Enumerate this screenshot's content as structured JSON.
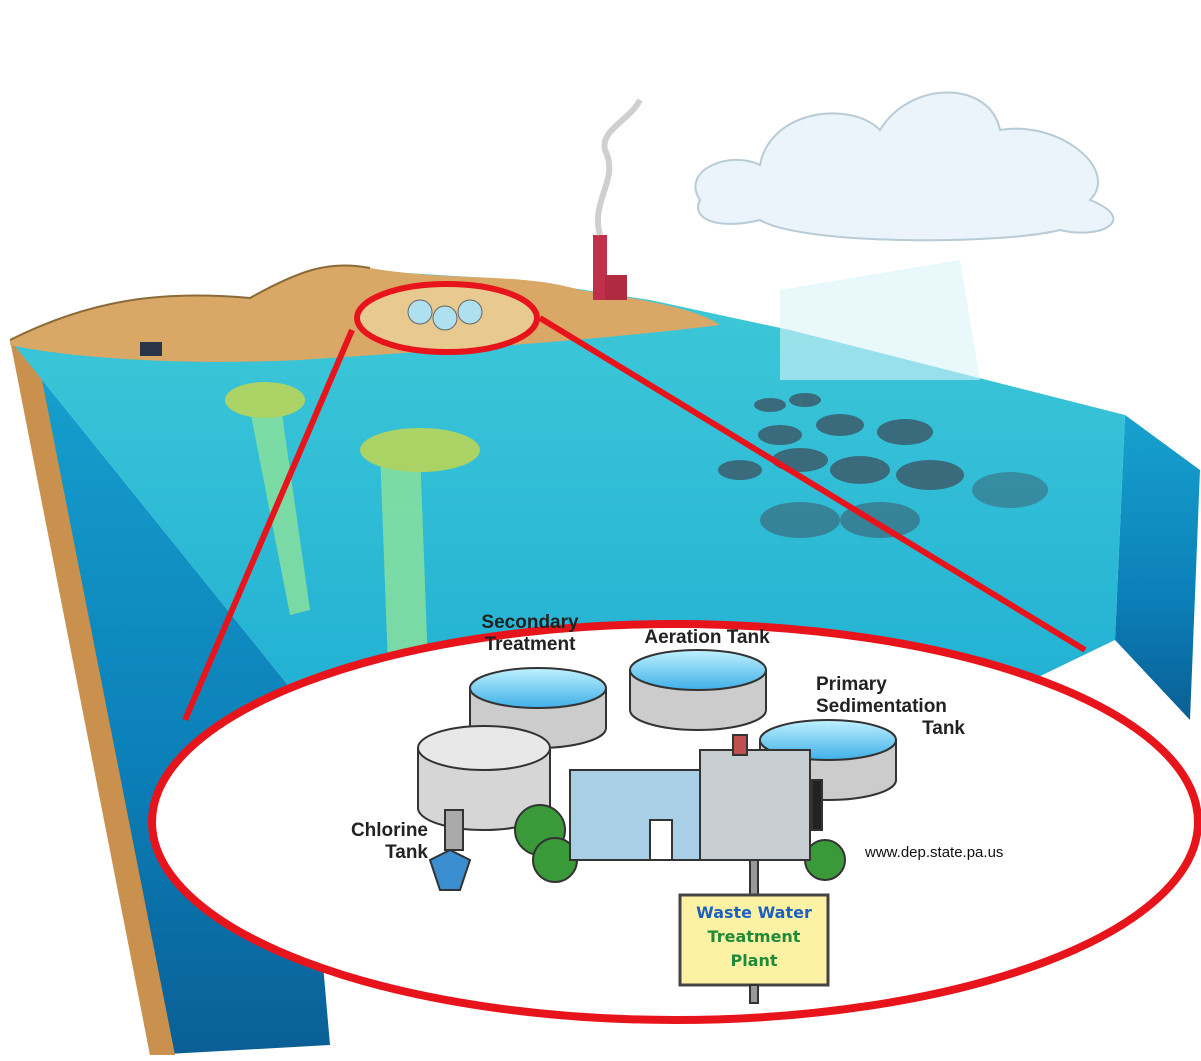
{
  "labels": {
    "secondary_treatment": [
      "Secondary",
      "Treatment"
    ],
    "aeration_tank": "Aeration Tank",
    "primary_sedimentation_tank": [
      "Primary",
      "Sedimentation",
      "Tank"
    ],
    "chlorine_tank": [
      "Chlorine",
      "Tank"
    ]
  },
  "source": "www.dep.state.pa.us",
  "sign": [
    "Waste Water",
    "Treatment",
    "Plant"
  ]
}
